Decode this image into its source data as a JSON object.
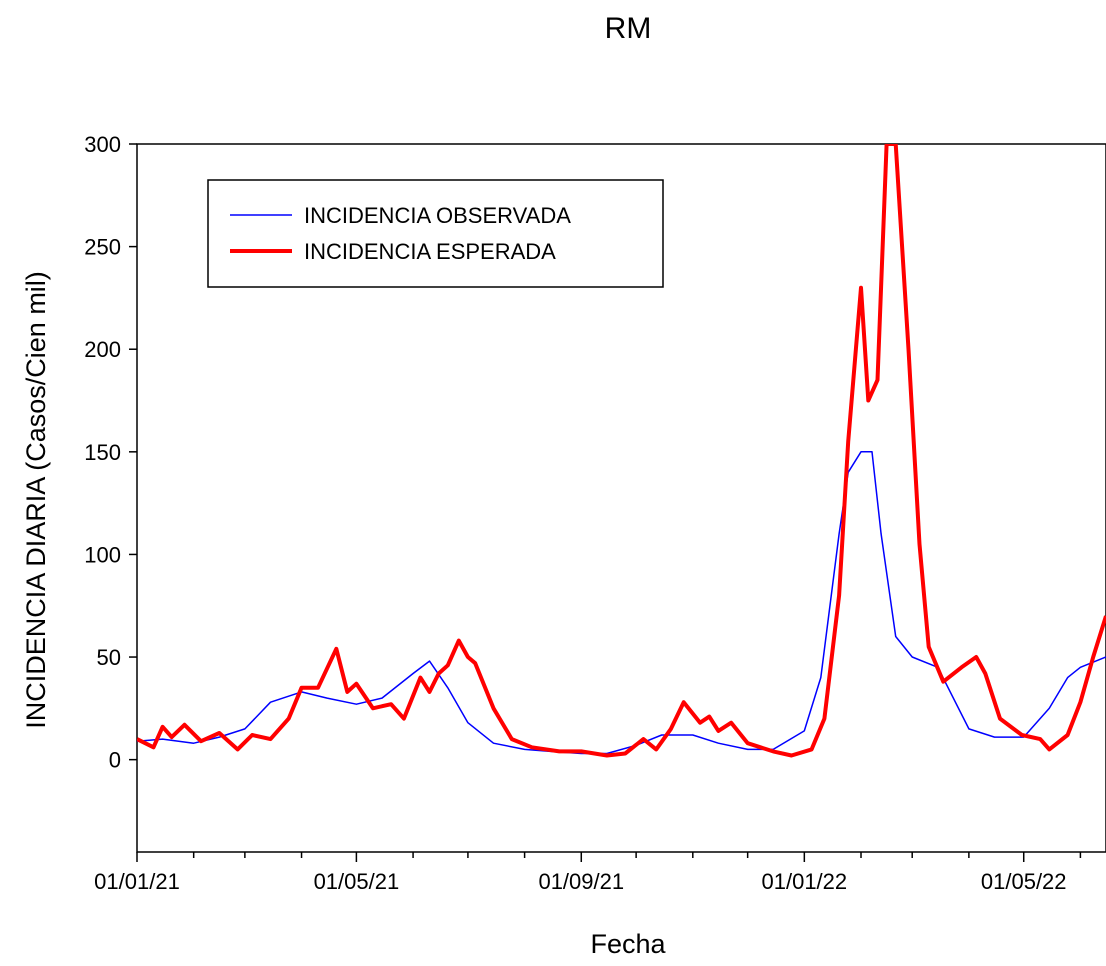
{
  "chart_data": {
    "type": "line",
    "title": "RM",
    "xlabel": "Fecha",
    "ylabel": "INCIDENCIA DIARIA (Casos/Cien mil)",
    "x_range": [
      "2021-01-01",
      "2022-06-15"
    ],
    "ylim": [
      -45,
      300
    ],
    "y_ticks": [
      0,
      50,
      100,
      150,
      200,
      250,
      300
    ],
    "x_tick_labels": [
      "01/01/21",
      "01/05/21",
      "01/09/21",
      "01/01/22",
      "01/05/22"
    ],
    "grid": false,
    "legend_position": "top-left",
    "series": [
      {
        "name": "INCIDENCIA OBSERVADA",
        "color": "#0000ff",
        "points": [
          [
            "2021-01-01",
            9
          ],
          [
            "2021-01-15",
            10
          ],
          [
            "2021-02-01",
            8
          ],
          [
            "2021-02-15",
            11
          ],
          [
            "2021-03-01",
            15
          ],
          [
            "2021-03-15",
            28
          ],
          [
            "2021-04-01",
            33
          ],
          [
            "2021-04-15",
            30
          ],
          [
            "2021-05-01",
            27
          ],
          [
            "2021-05-15",
            30
          ],
          [
            "2021-06-01",
            42
          ],
          [
            "2021-06-10",
            48
          ],
          [
            "2021-06-20",
            35
          ],
          [
            "2021-07-01",
            18
          ],
          [
            "2021-07-15",
            8
          ],
          [
            "2021-08-01",
            5
          ],
          [
            "2021-08-15",
            4
          ],
          [
            "2021-09-01",
            3
          ],
          [
            "2021-09-15",
            3
          ],
          [
            "2021-10-01",
            7
          ],
          [
            "2021-10-15",
            12
          ],
          [
            "2021-11-01",
            12
          ],
          [
            "2021-11-15",
            8
          ],
          [
            "2021-12-01",
            5
          ],
          [
            "2021-12-15",
            5
          ],
          [
            "2022-01-01",
            14
          ],
          [
            "2022-01-10",
            40
          ],
          [
            "2022-01-20",
            110
          ],
          [
            "2022-01-25",
            140
          ],
          [
            "2022-02-01",
            150
          ],
          [
            "2022-02-07",
            150
          ],
          [
            "2022-02-12",
            110
          ],
          [
            "2022-02-20",
            60
          ],
          [
            "2022-03-01",
            50
          ],
          [
            "2022-03-15",
            45
          ],
          [
            "2022-04-01",
            15
          ],
          [
            "2022-04-15",
            11
          ],
          [
            "2022-05-01",
            11
          ],
          [
            "2022-05-15",
            25
          ],
          [
            "2022-05-25",
            40
          ],
          [
            "2022-06-01",
            45
          ],
          [
            "2022-06-15",
            50
          ]
        ]
      },
      {
        "name": "INCIDENCIA ESPERADA",
        "color": "#ff0000",
        "points": [
          [
            "2021-01-01",
            10
          ],
          [
            "2021-01-10",
            6
          ],
          [
            "2021-01-15",
            16
          ],
          [
            "2021-01-20",
            11
          ],
          [
            "2021-01-27",
            17
          ],
          [
            "2021-02-05",
            9
          ],
          [
            "2021-02-15",
            13
          ],
          [
            "2021-02-25",
            5
          ],
          [
            "2021-03-05",
            12
          ],
          [
            "2021-03-15",
            10
          ],
          [
            "2021-03-25",
            20
          ],
          [
            "2021-04-01",
            35
          ],
          [
            "2021-04-10",
            35
          ],
          [
            "2021-04-20",
            54
          ],
          [
            "2021-04-26",
            33
          ],
          [
            "2021-05-01",
            37
          ],
          [
            "2021-05-10",
            25
          ],
          [
            "2021-05-20",
            27
          ],
          [
            "2021-05-27",
            20
          ],
          [
            "2021-06-05",
            40
          ],
          [
            "2021-06-10",
            33
          ],
          [
            "2021-06-15",
            42
          ],
          [
            "2021-06-20",
            46
          ],
          [
            "2021-06-26",
            58
          ],
          [
            "2021-07-01",
            50
          ],
          [
            "2021-07-05",
            47
          ],
          [
            "2021-07-15",
            25
          ],
          [
            "2021-07-25",
            10
          ],
          [
            "2021-08-05",
            6
          ],
          [
            "2021-08-20",
            4
          ],
          [
            "2021-09-01",
            4
          ],
          [
            "2021-09-15",
            2
          ],
          [
            "2021-09-25",
            3
          ],
          [
            "2021-10-05",
            10
          ],
          [
            "2021-10-12",
            5
          ],
          [
            "2021-10-20",
            15
          ],
          [
            "2021-10-27",
            28
          ],
          [
            "2021-11-05",
            18
          ],
          [
            "2021-11-10",
            21
          ],
          [
            "2021-11-15",
            14
          ],
          [
            "2021-11-22",
            18
          ],
          [
            "2021-12-01",
            8
          ],
          [
            "2021-12-15",
            4
          ],
          [
            "2021-12-25",
            2
          ],
          [
            "2022-01-05",
            5
          ],
          [
            "2022-01-12",
            20
          ],
          [
            "2022-01-20",
            80
          ],
          [
            "2022-01-25",
            155
          ],
          [
            "2022-02-01",
            230
          ],
          [
            "2022-02-05",
            175
          ],
          [
            "2022-02-10",
            185
          ],
          [
            "2022-02-15",
            300
          ],
          [
            "2022-02-20",
            300
          ],
          [
            "2022-02-27",
            200
          ],
          [
            "2022-03-05",
            105
          ],
          [
            "2022-03-10",
            55
          ],
          [
            "2022-03-18",
            38
          ],
          [
            "2022-03-28",
            45
          ],
          [
            "2022-04-05",
            50
          ],
          [
            "2022-04-10",
            42
          ],
          [
            "2022-04-18",
            20
          ],
          [
            "2022-04-30",
            12
          ],
          [
            "2022-05-10",
            10
          ],
          [
            "2022-05-15",
            5
          ],
          [
            "2022-05-25",
            12
          ],
          [
            "2022-06-01",
            28
          ],
          [
            "2022-06-08",
            50
          ],
          [
            "2022-06-15",
            70
          ]
        ]
      }
    ]
  }
}
